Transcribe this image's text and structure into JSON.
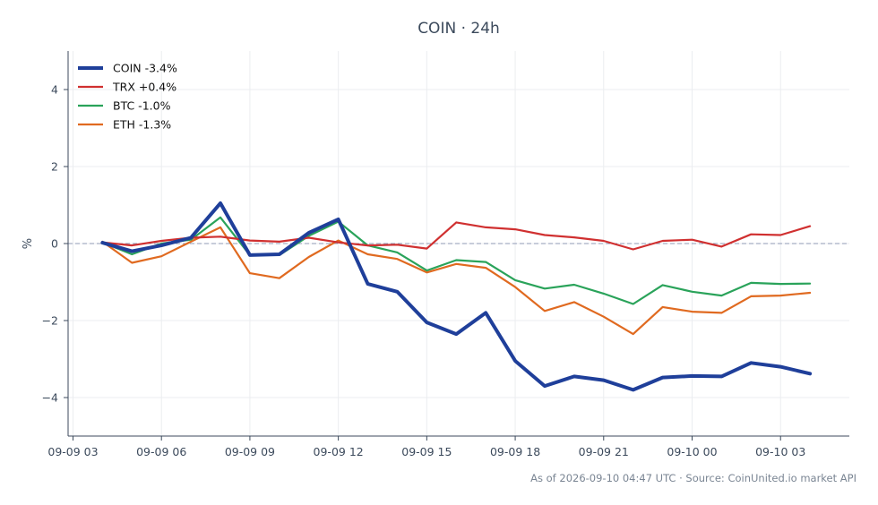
{
  "chart_data": {
    "type": "line",
    "title": "COIN · 24h",
    "xlabel": "",
    "ylabel": "%",
    "footer": "As of 2026-09-10 04:47 UTC · Source: CoinUnited.io market API",
    "x_ticks": [
      "09-09 03",
      "09-09 06",
      "09-09 09",
      "09-09 12",
      "09-09 15",
      "09-09 18",
      "09-09 21",
      "09-10 00",
      "09-10 03"
    ],
    "y_ticks": [
      "−4",
      "−2",
      "0",
      "2",
      "4"
    ],
    "xlim": [
      "2026-09-09 02:50",
      "2026-09-10 05:20"
    ],
    "ylim": [
      -5.0,
      5.0
    ],
    "grid": true,
    "zero_line": true,
    "legend_position": "top-left",
    "x": [
      "2026-09-09 04:00",
      "2026-09-09 05:00",
      "2026-09-09 06:00",
      "2026-09-09 07:00",
      "2026-09-09 08:00",
      "2026-09-09 09:00",
      "2026-09-09 10:00",
      "2026-09-09 11:00",
      "2026-09-09 12:00",
      "2026-09-09 13:00",
      "2026-09-09 14:00",
      "2026-09-09 15:00",
      "2026-09-09 16:00",
      "2026-09-09 17:00",
      "2026-09-09 18:00",
      "2026-09-09 19:00",
      "2026-09-09 20:00",
      "2026-09-09 21:00",
      "2026-09-09 22:00",
      "2026-09-09 23:00",
      "2026-09-10 00:00",
      "2026-09-10 01:00",
      "2026-09-10 02:00",
      "2026-09-10 03:00",
      "2026-09-10 04:00"
    ],
    "series": [
      {
        "name": "COIN -3.4%",
        "color": "#1f3f9a",
        "width": 4,
        "values": [
          0.02,
          -0.2,
          -0.05,
          0.15,
          1.05,
          -0.3,
          -0.28,
          0.28,
          0.63,
          -1.05,
          -1.25,
          -2.05,
          -2.35,
          -1.8,
          -3.05,
          -3.7,
          -3.45,
          -3.55,
          -3.8,
          -3.48,
          -3.44,
          -3.45,
          -3.1,
          -3.2,
          -3.38
        ]
      },
      {
        "name": "TRX +0.4%",
        "color": "#d03030",
        "width": 2.2,
        "values": [
          0.03,
          -0.05,
          0.07,
          0.15,
          0.18,
          0.08,
          0.05,
          0.15,
          0.03,
          -0.05,
          -0.03,
          -0.13,
          0.55,
          0.42,
          0.37,
          0.22,
          0.16,
          0.07,
          -0.15,
          0.07,
          0.1,
          -0.08,
          0.24,
          0.22,
          0.45
        ]
      },
      {
        "name": "BTC -1.0%",
        "color": "#2aa35a",
        "width": 2.2,
        "values": [
          0.03,
          -0.28,
          0.0,
          0.1,
          0.68,
          -0.3,
          -0.3,
          0.2,
          0.57,
          -0.05,
          -0.23,
          -0.7,
          -0.43,
          -0.48,
          -0.95,
          -1.17,
          -1.07,
          -1.3,
          -1.57,
          -1.08,
          -1.25,
          -1.35,
          -1.02,
          -1.05,
          -1.04
        ]
      },
      {
        "name": "ETH -1.3%",
        "color": "#e06a20",
        "width": 2.2,
        "values": [
          0.05,
          -0.5,
          -0.33,
          0.05,
          0.42,
          -0.77,
          -0.9,
          -0.35,
          0.08,
          -0.28,
          -0.4,
          -0.75,
          -0.53,
          -0.63,
          -1.13,
          -1.75,
          -1.52,
          -1.9,
          -2.35,
          -1.65,
          -1.77,
          -1.8,
          -1.37,
          -1.35,
          -1.28
        ]
      }
    ]
  }
}
